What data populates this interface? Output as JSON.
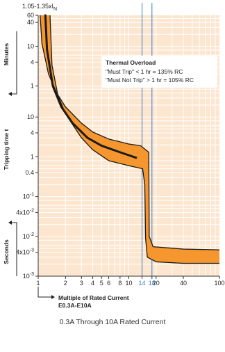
{
  "chart_data": {
    "type": "line",
    "title": "",
    "top_label": "1.05-1.35xI",
    "top_label_sub": "N",
    "xlabel": "Multiple of Rated Current",
    "xlabel_sub": "E0.3A-E10A",
    "ylabel_upper": "Minutes",
    "ylabel_mid": "Tripping time t",
    "ylabel_lower": "Seconds",
    "xscale": "log",
    "yscale": "log",
    "xlim": [
      1,
      100
    ],
    "ylim_seconds": [
      0.001,
      3600
    ],
    "grid": true,
    "x_ticks": [
      {
        "v": 2,
        "label": "2"
      },
      {
        "v": 3,
        "label": "3"
      },
      {
        "v": 4,
        "label": "4"
      },
      {
        "v": 5,
        "label": "5"
      },
      {
        "v": 6,
        "label": "6"
      },
      {
        "v": 8,
        "label": "8"
      },
      {
        "v": 10,
        "label": "10"
      },
      {
        "v": 14,
        "label": "14"
      },
      {
        "v": 18,
        "label": "18"
      },
      {
        "v": 20,
        "label": "20"
      },
      {
        "v": 40,
        "label": "40"
      },
      {
        "v": 100,
        "label": "100"
      }
    ],
    "x_tick_1": "1",
    "highlight_x": [
      14,
      18
    ],
    "y_ticks": [
      {
        "sec": 3600,
        "label": "60"
      },
      {
        "sec": 2400,
        "label": "40"
      },
      {
        "sec": 600,
        "label": "10"
      },
      {
        "sec": 240,
        "label": "4"
      },
      {
        "sec": 60,
        "label": "1"
      },
      {
        "sec": 10,
        "label": "10"
      },
      {
        "sec": 4,
        "label": "4"
      },
      {
        "sec": 1,
        "label": "1"
      },
      {
        "sec": 0.4,
        "label": "0.4"
      },
      {
        "sec": 0.1,
        "label": "10-1",
        "base": "10",
        "exp": "-1"
      },
      {
        "sec": 0.04,
        "label": "4x10-2",
        "base": "4x10",
        "exp": "-2"
      },
      {
        "sec": 0.01,
        "label": "10-2",
        "base": "10",
        "exp": "-2"
      },
      {
        "sec": 0.004,
        "label": "4x10-3",
        "base": "4x10",
        "exp": "-3"
      },
      {
        "sec": 0.001,
        "label": "10-3",
        "base": "10",
        "exp": "-3"
      }
    ],
    "series": [
      {
        "role": "band-upper",
        "points": [
          [
            1.05,
            3600
          ],
          [
            1.1,
            700
          ],
          [
            1.3,
            120
          ],
          [
            1.6,
            40
          ],
          [
            2,
            18
          ],
          [
            3,
            7
          ],
          [
            4,
            4.2
          ],
          [
            6,
            2.8
          ],
          [
            10,
            2.1
          ],
          [
            13.5,
            1.9
          ],
          [
            16.6,
            1.3
          ],
          [
            16.8,
            0.01
          ],
          [
            18.5,
            0.0055
          ],
          [
            40,
            0.0048
          ],
          [
            100,
            0.0046
          ]
        ]
      },
      {
        "role": "band-lower",
        "points": [
          [
            1.35,
            3600
          ],
          [
            1.42,
            200
          ],
          [
            1.65,
            35
          ],
          [
            2,
            12
          ],
          [
            3,
            3
          ],
          [
            4,
            1.5
          ],
          [
            6,
            0.8
          ],
          [
            10,
            0.6
          ],
          [
            14.2,
            0.5
          ],
          [
            15,
            0.2
          ],
          [
            15.3,
            0.009
          ],
          [
            16,
            0.003
          ],
          [
            20,
            0.0023
          ],
          [
            40,
            0.0021
          ],
          [
            100,
            0.0021
          ]
        ]
      },
      {
        "role": "mean",
        "points": [
          [
            1.2,
            3600
          ],
          [
            1.25,
            500
          ],
          [
            1.45,
            60
          ],
          [
            1.8,
            18
          ],
          [
            2.4,
            7
          ],
          [
            3.5,
            3
          ],
          [
            5,
            1.9
          ],
          [
            8,
            1.3
          ],
          [
            12,
            0.95
          ]
        ]
      }
    ],
    "callout": {
      "title": "Thermal Overload",
      "line1": "\"Must Trip\" < 1 hr = 135% RC",
      "line2": "\"Must Not Trip\" > 1 hr = 105% RC"
    },
    "caption": "0.3A Through 10A Rated Current",
    "colors": {
      "plot_bg": "#fde6cf",
      "band": "#f6962e",
      "curve": "#1a1a1a",
      "grid": "#ffffff",
      "highlight": "#2f7fd0"
    }
  }
}
